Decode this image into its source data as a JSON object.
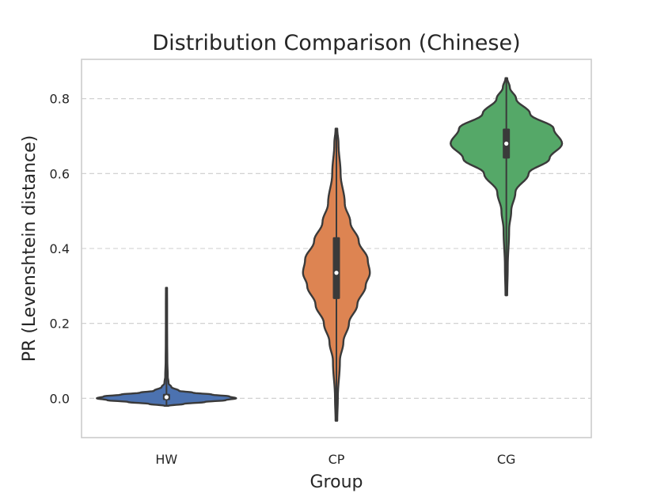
{
  "chart_data": {
    "type": "violin",
    "title": "Distribution Comparison (Chinese)",
    "xlabel": "Group",
    "ylabel": "PR (Levenshtein distance)",
    "categories": [
      "HW",
      "CP",
      "CG"
    ],
    "ylim": [
      -0.105,
      0.905
    ],
    "yticks": [
      0.0,
      0.2,
      0.4,
      0.6,
      0.8
    ],
    "ytick_labels": [
      "0.0",
      "0.2",
      "0.4",
      "0.6",
      "0.8"
    ],
    "grid": "y-dashed",
    "series": [
      {
        "category": "HW",
        "color": "#4c72b0",
        "min": -0.02,
        "max": 0.295,
        "q1": -0.005,
        "median": 0.003,
        "q3": 0.012,
        "profile": [
          [
            -0.02,
            0.03
          ],
          [
            -0.015,
            0.25
          ],
          [
            -0.01,
            0.55
          ],
          [
            -0.005,
            0.85
          ],
          [
            0.0,
            1.0
          ],
          [
            0.005,
            0.9
          ],
          [
            0.01,
            0.65
          ],
          [
            0.015,
            0.38
          ],
          [
            0.02,
            0.18
          ],
          [
            0.03,
            0.07
          ],
          [
            0.04,
            0.03
          ],
          [
            0.06,
            0.018
          ],
          [
            0.1,
            0.012
          ],
          [
            0.15,
            0.01
          ],
          [
            0.2,
            0.009
          ],
          [
            0.25,
            0.009
          ],
          [
            0.295,
            0.008
          ]
        ]
      },
      {
        "category": "CP",
        "color": "#dd8452",
        "min": -0.06,
        "max": 0.72,
        "q1": 0.265,
        "median": 0.335,
        "q3": 0.43,
        "profile": [
          [
            -0.06,
            0.012
          ],
          [
            0.0,
            0.02
          ],
          [
            0.1,
            0.05
          ],
          [
            0.15,
            0.1
          ],
          [
            0.2,
            0.18
          ],
          [
            0.25,
            0.3
          ],
          [
            0.3,
            0.42
          ],
          [
            0.335,
            0.48
          ],
          [
            0.37,
            0.45
          ],
          [
            0.42,
            0.32
          ],
          [
            0.47,
            0.2
          ],
          [
            0.52,
            0.12
          ],
          [
            0.6,
            0.06
          ],
          [
            0.68,
            0.03
          ],
          [
            0.72,
            0.012
          ]
        ]
      },
      {
        "category": "CG",
        "color": "#55a868",
        "min": 0.275,
        "max": 0.855,
        "q1": 0.64,
        "median": 0.68,
        "q3": 0.72,
        "profile": [
          [
            0.275,
            0.012
          ],
          [
            0.35,
            0.02
          ],
          [
            0.45,
            0.04
          ],
          [
            0.5,
            0.07
          ],
          [
            0.55,
            0.13
          ],
          [
            0.6,
            0.32
          ],
          [
            0.64,
            0.62
          ],
          [
            0.68,
            0.8
          ],
          [
            0.72,
            0.68
          ],
          [
            0.76,
            0.34
          ],
          [
            0.8,
            0.14
          ],
          [
            0.83,
            0.05
          ],
          [
            0.855,
            0.012
          ]
        ]
      }
    ]
  }
}
